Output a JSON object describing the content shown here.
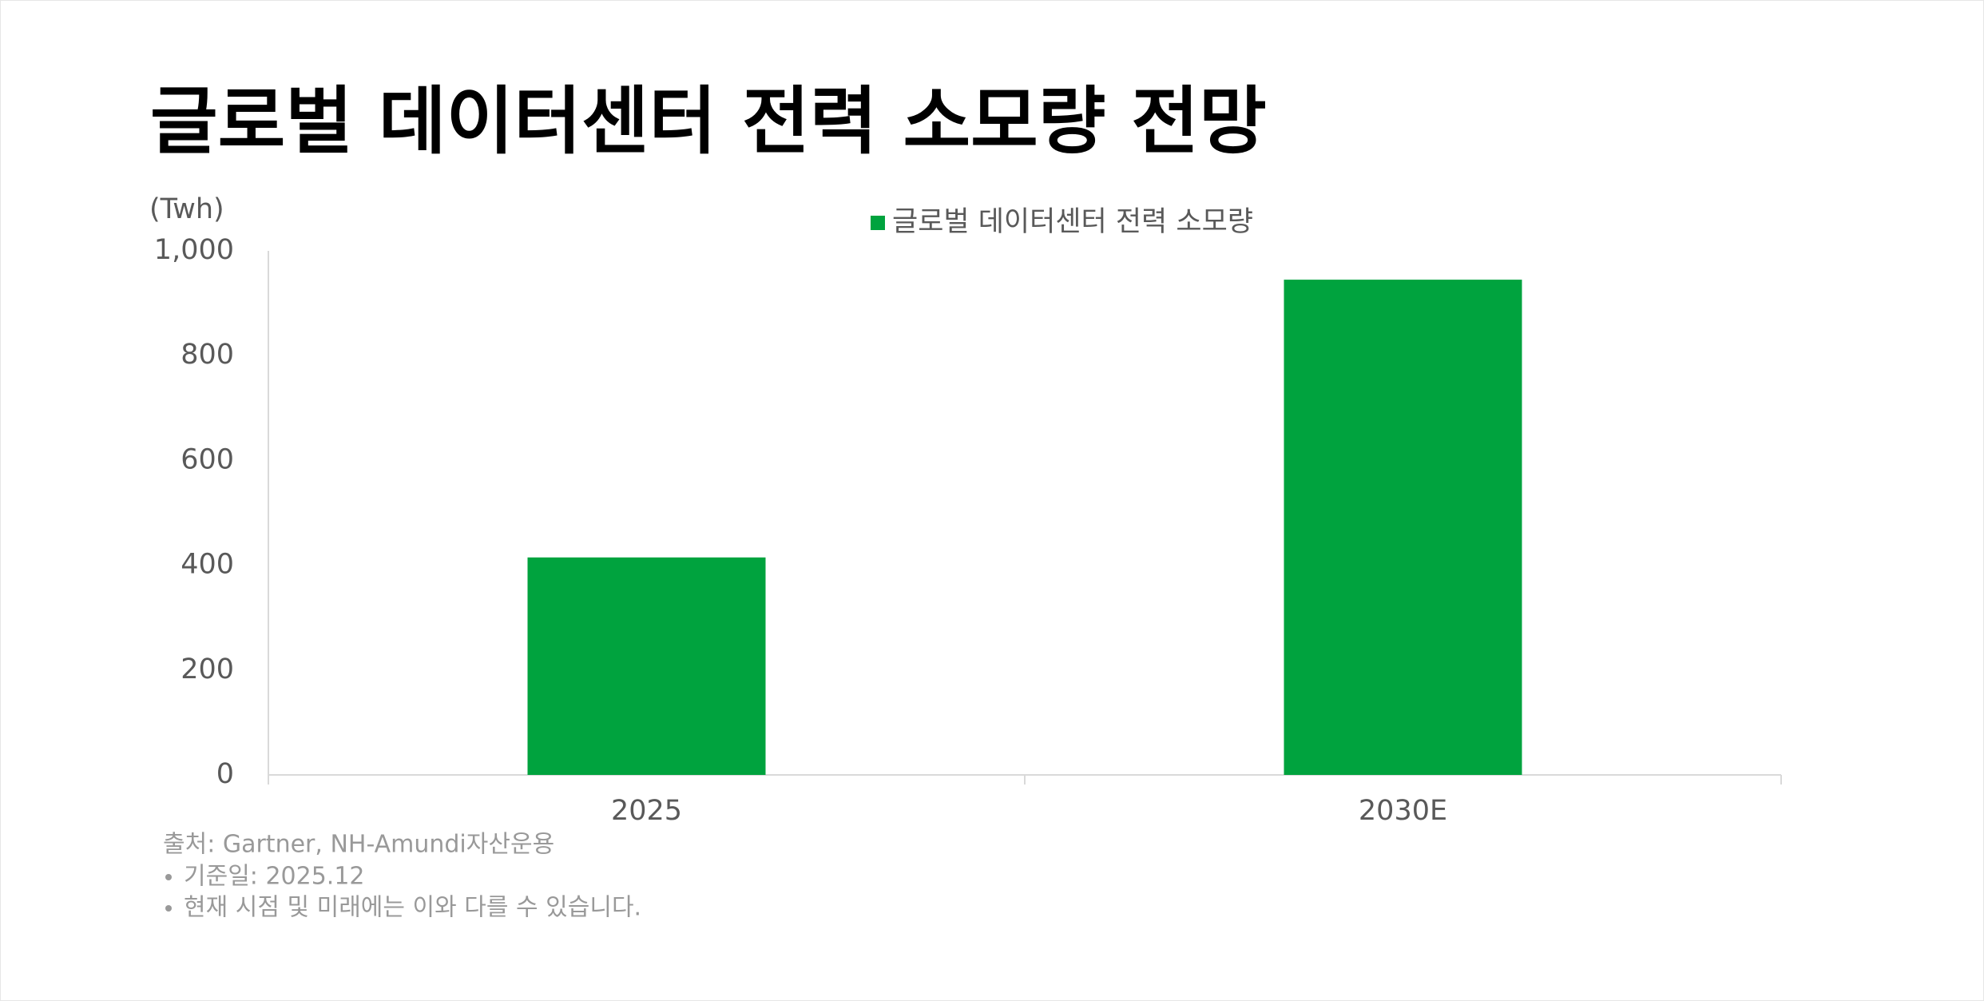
{
  "chart_data": {
    "type": "bar",
    "title": "글로벌 데이터센터 전력 소모량 전망",
    "y_unit": "(Twh)",
    "categories": [
      "2025",
      "2030E"
    ],
    "series": [
      {
        "name": "글로벌 데이터센터 전력 소모량",
        "color": "#00a33e",
        "values": [
          415,
          945
        ]
      }
    ],
    "ylim": [
      0,
      1000
    ],
    "yticks": [
      0,
      200,
      400,
      600,
      800,
      {
        "value": 1000,
        "label": "1,000"
      }
    ],
    "grid": false,
    "legend": "top",
    "source": "출처: Gartner, NH-Amundi자산운용",
    "notes": [
      "기준일: 2025.12",
      "현재 시점 및 미래에는 이와 다를 수 있습니다."
    ]
  }
}
